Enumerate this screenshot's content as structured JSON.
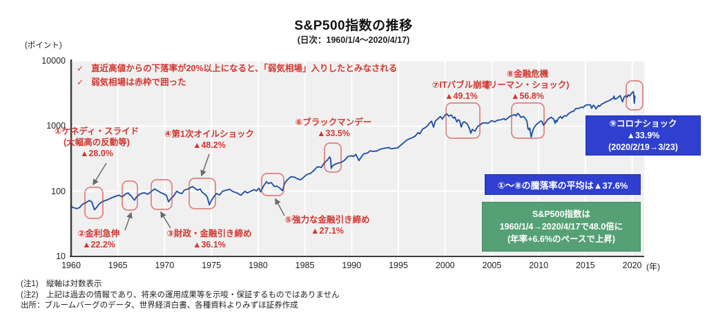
{
  "header": {
    "title": "S&P500指数の推移",
    "subtitle": "(日次：1960/1/4～2020/4/17)"
  },
  "top_notes": {
    "check_icon": "✓",
    "line1": "直近高値からの下落率が20%以上になると、「弱気相場」入りしたとみなされる",
    "line2": "弱気相場は赤枠で囲った"
  },
  "axes": {
    "y_unit": "(ポイント)",
    "x_unit": "(年)"
  },
  "events": [
    {
      "label": "①ケネディ・スライド",
      "sub": "(大幅高の反動等)",
      "value": "▲28.0%"
    },
    {
      "label": "②金利急伸",
      "value": "▲22.2%"
    },
    {
      "label": "③財政・金融引き締め",
      "value": "▲36.1%"
    },
    {
      "label": "④第1次オイルショック",
      "value": "▲48.2%"
    },
    {
      "label": "⑤強力な金融引き締め",
      "value": "▲27.1%"
    },
    {
      "label": "⑥ブラックマンデー",
      "value": "▲33.5%"
    },
    {
      "label": "⑦ITバブル崩壊",
      "value": "▲49.1%"
    },
    {
      "label": "⑧金融危機",
      "sub": "(リーマン・ショック)",
      "value": "▲56.8%"
    },
    {
      "label": "⑨コロナショック",
      "value": "▲33.9%",
      "sub": "(2020/2/19→3/23)"
    }
  ],
  "summary": {
    "avg_drop": "①～⑧の騰落率の平均は▲37.6%",
    "growth_line1": "S&P500指数は",
    "growth_line2": "1960/1/4→2020/4/17で48.0倍に",
    "growth_line3": "(年率+6.6%のペースで上昇)"
  },
  "footnotes": {
    "note1": "(注1)　縦軸は対数表示",
    "note2": "(注2)　上記は過去の情報であり、将来の運用成果等を示唆・保証するものではありません",
    "source": "出所：ブルームバーグのデータ、世界経済白書、各種資料よりみずほ証券作成"
  },
  "colors": {
    "line": "#2152a3",
    "red": "#d23630",
    "bear_box_stroke": "rgba(210,54,48,0.6)",
    "blue_box": "#2f3fd0",
    "green_box": "#55a075",
    "plot_bg": "#f0f0f0",
    "grid": "#ffffff",
    "spine": "#3c3c3c",
    "arrow": "#6b6b6b"
  },
  "chart_data": {
    "type": "line",
    "title": "S&P500指数の推移",
    "subtitle": "(日次：1960/1/4～2020/4/17)",
    "ylabel": "(ポイント)",
    "xlabel": "(年)",
    "y_scale": "log",
    "ylim": [
      10,
      10000
    ],
    "y_tick_values": [
      10000,
      1000,
      100,
      10
    ],
    "y_tick_labels": [
      "10000",
      "1000",
      "100",
      "10"
    ],
    "x_tick_values": [
      1960,
      1965,
      1970,
      1975,
      1980,
      1985,
      1990,
      1995,
      2000,
      2005,
      2010,
      2015,
      2020
    ],
    "x_tick_labels": [
      "1960",
      "1965",
      "1970",
      "1975",
      "1980",
      "1985",
      "1990",
      "1995",
      "2000",
      "2005",
      "2010",
      "2015",
      "2020"
    ],
    "legend": "none",
    "grid": "on",
    "series": [
      {
        "name": "S&P500",
        "points": [
          [
            1960.0,
            59
          ],
          [
            1960.25,
            56
          ],
          [
            1960.6,
            54
          ],
          [
            1960.9,
            56
          ],
          [
            1961.2,
            63
          ],
          [
            1961.6,
            67
          ],
          [
            1961.95,
            72
          ],
          [
            1962.2,
            69
          ],
          [
            1962.35,
            60
          ],
          [
            1962.5,
            52
          ],
          [
            1962.75,
            57
          ],
          [
            1963.0,
            64
          ],
          [
            1963.4,
            70
          ],
          [
            1963.9,
            74
          ],
          [
            1964.3,
            79
          ],
          [
            1964.8,
            84
          ],
          [
            1965.1,
            87
          ],
          [
            1965.45,
            82
          ],
          [
            1965.9,
            92
          ],
          [
            1966.1,
            94
          ],
          [
            1966.35,
            87
          ],
          [
            1966.6,
            78
          ],
          [
            1966.78,
            73
          ],
          [
            1967.0,
            82
          ],
          [
            1967.4,
            91
          ],
          [
            1967.8,
            95
          ],
          [
            1968.2,
            90
          ],
          [
            1968.6,
            100
          ],
          [
            1968.92,
            108
          ],
          [
            1969.3,
            101
          ],
          [
            1969.6,
            95
          ],
          [
            1969.95,
            90
          ],
          [
            1970.2,
            86
          ],
          [
            1970.42,
            69
          ],
          [
            1970.7,
            78
          ],
          [
            1970.95,
            84
          ],
          [
            1971.3,
            100
          ],
          [
            1971.6,
            94
          ],
          [
            1971.85,
            92
          ],
          [
            1972.1,
            104
          ],
          [
            1972.5,
            108
          ],
          [
            1972.96,
            118
          ],
          [
            1973.2,
            112
          ],
          [
            1973.5,
            104
          ],
          [
            1973.8,
            108
          ],
          [
            1974.0,
            97
          ],
          [
            1974.3,
            90
          ],
          [
            1974.55,
            82
          ],
          [
            1974.78,
            62
          ],
          [
            1975.0,
            72
          ],
          [
            1975.3,
            84
          ],
          [
            1975.55,
            92
          ],
          [
            1975.9,
            88
          ],
          [
            1976.2,
            100
          ],
          [
            1976.6,
            104
          ],
          [
            1976.95,
            107
          ],
          [
            1977.3,
            99
          ],
          [
            1977.7,
            95
          ],
          [
            1978.15,
            87
          ],
          [
            1978.6,
            100
          ],
          [
            1978.85,
            94
          ],
          [
            1979.2,
            100
          ],
          [
            1979.6,
            106
          ],
          [
            1979.8,
            101
          ],
          [
            1980.1,
            111
          ],
          [
            1980.27,
            98
          ],
          [
            1980.6,
            122
          ],
          [
            1980.9,
            140
          ],
          [
            1981.1,
            131
          ],
          [
            1981.4,
            136
          ],
          [
            1981.75,
            118
          ],
          [
            1982.0,
            120
          ],
          [
            1982.3,
            112
          ],
          [
            1982.6,
            102
          ],
          [
            1982.85,
            135
          ],
          [
            1983.1,
            148
          ],
          [
            1983.5,
            167
          ],
          [
            1983.9,
            164
          ],
          [
            1984.2,
            155
          ],
          [
            1984.55,
            150
          ],
          [
            1984.9,
            165
          ],
          [
            1985.2,
            180
          ],
          [
            1985.6,
            188
          ],
          [
            1985.95,
            207
          ],
          [
            1986.3,
            235
          ],
          [
            1986.55,
            236
          ],
          [
            1986.75,
            231
          ],
          [
            1987.1,
            275
          ],
          [
            1987.4,
            300
          ],
          [
            1987.65,
            336
          ],
          [
            1987.75,
            315
          ],
          [
            1987.82,
            225
          ],
          [
            1987.95,
            245
          ],
          [
            1988.2,
            258
          ],
          [
            1988.55,
            270
          ],
          [
            1988.9,
            278
          ],
          [
            1989.2,
            295
          ],
          [
            1989.6,
            340
          ],
          [
            1989.95,
            350
          ],
          [
            1990.2,
            340
          ],
          [
            1990.45,
            368
          ],
          [
            1990.78,
            295
          ],
          [
            1991.0,
            330
          ],
          [
            1991.3,
            375
          ],
          [
            1991.7,
            385
          ],
          [
            1991.98,
            417
          ],
          [
            1992.3,
            410
          ],
          [
            1992.7,
            415
          ],
          [
            1992.97,
            435
          ],
          [
            1993.3,
            450
          ],
          [
            1993.7,
            460
          ],
          [
            1993.97,
            467
          ],
          [
            1994.2,
            447
          ],
          [
            1994.55,
            455
          ],
          [
            1994.9,
            460
          ],
          [
            1995.2,
            500
          ],
          [
            1995.6,
            560
          ],
          [
            1995.95,
            616
          ],
          [
            1996.3,
            645
          ],
          [
            1996.55,
            670
          ],
          [
            1996.8,
            700
          ],
          [
            1997.1,
            790
          ],
          [
            1997.3,
            760
          ],
          [
            1997.6,
            900
          ],
          [
            1997.85,
            940
          ],
          [
            1998.1,
            1000
          ],
          [
            1998.3,
            1100
          ],
          [
            1998.55,
            1186
          ],
          [
            1998.76,
            960
          ],
          [
            1998.95,
            1190
          ],
          [
            1999.2,
            1280
          ],
          [
            1999.5,
            1400
          ],
          [
            1999.7,
            1280
          ],
          [
            1999.97,
            1469
          ],
          [
            2000.2,
            1527
          ],
          [
            2000.4,
            1420
          ],
          [
            2000.65,
            1480
          ],
          [
            2000.9,
            1320
          ],
          [
            2001.05,
            1370
          ],
          [
            2001.25,
            1160
          ],
          [
            2001.4,
            1250
          ],
          [
            2001.55,
            1210
          ],
          [
            2001.72,
            966
          ],
          [
            2001.9,
            1140
          ],
          [
            2002.05,
            1160
          ],
          [
            2002.3,
            1100
          ],
          [
            2002.5,
            990
          ],
          [
            2002.75,
            777
          ],
          [
            2002.9,
            890
          ],
          [
            2003.05,
            855
          ],
          [
            2003.2,
            840
          ],
          [
            2003.5,
            990
          ],
          [
            2003.8,
            1050
          ],
          [
            2003.97,
            1112
          ],
          [
            2004.3,
            1120
          ],
          [
            2004.6,
            1100
          ],
          [
            2004.97,
            1212
          ],
          [
            2005.3,
            1160
          ],
          [
            2005.6,
            1230
          ],
          [
            2005.97,
            1248
          ],
          [
            2006.3,
            1300
          ],
          [
            2006.45,
            1240
          ],
          [
            2006.8,
            1360
          ],
          [
            2006.97,
            1418
          ],
          [
            2007.2,
            1450
          ],
          [
            2007.45,
            1500
          ],
          [
            2007.6,
            1430
          ],
          [
            2007.78,
            1565
          ],
          [
            2007.95,
            1470
          ],
          [
            2008.1,
            1360
          ],
          [
            2008.4,
            1400
          ],
          [
            2008.65,
            1250
          ],
          [
            2008.75,
            1180
          ],
          [
            2008.87,
            900
          ],
          [
            2008.95,
            880
          ],
          [
            2009.05,
            930
          ],
          [
            2009.2,
            677
          ],
          [
            2009.4,
            870
          ],
          [
            2009.6,
            990
          ],
          [
            2009.8,
            1070
          ],
          [
            2009.97,
            1115
          ],
          [
            2010.2,
            1190
          ],
          [
            2010.35,
            1180
          ],
          [
            2010.52,
            1030
          ],
          [
            2010.7,
            1100
          ],
          [
            2010.97,
            1258
          ],
          [
            2011.15,
            1320
          ],
          [
            2011.35,
            1360
          ],
          [
            2011.6,
            1280
          ],
          [
            2011.76,
            1100
          ],
          [
            2011.85,
            1220
          ],
          [
            2011.95,
            1160
          ],
          [
            2012.1,
            1310
          ],
          [
            2012.35,
            1400
          ],
          [
            2012.5,
            1310
          ],
          [
            2012.75,
            1440
          ],
          [
            2012.97,
            1426
          ],
          [
            2013.2,
            1550
          ],
          [
            2013.5,
            1650
          ],
          [
            2013.75,
            1690
          ],
          [
            2013.97,
            1848
          ],
          [
            2014.3,
            1870
          ],
          [
            2014.6,
            1960
          ],
          [
            2014.75,
            1910
          ],
          [
            2014.97,
            2060
          ],
          [
            2015.15,
            2100
          ],
          [
            2015.38,
            2130
          ],
          [
            2015.55,
            2100
          ],
          [
            2015.67,
            1870
          ],
          [
            2015.85,
            2080
          ],
          [
            2016.0,
            2000
          ],
          [
            2016.13,
            1830
          ],
          [
            2016.4,
            2070
          ],
          [
            2016.5,
            2000
          ],
          [
            2016.75,
            2170
          ],
          [
            2016.97,
            2239
          ],
          [
            2017.2,
            2360
          ],
          [
            2017.5,
            2430
          ],
          [
            2017.75,
            2560
          ],
          [
            2017.97,
            2674
          ],
          [
            2018.07,
            2870
          ],
          [
            2018.13,
            2580
          ],
          [
            2018.35,
            2640
          ],
          [
            2018.55,
            2780
          ],
          [
            2018.72,
            2930
          ],
          [
            2018.85,
            2630
          ],
          [
            2018.97,
            2351
          ],
          [
            2019.15,
            2800
          ],
          [
            2019.35,
            2920
          ],
          [
            2019.45,
            2750
          ],
          [
            2019.6,
            3020
          ],
          [
            2019.75,
            2890
          ],
          [
            2019.97,
            3230
          ],
          [
            2020.05,
            3290
          ],
          [
            2020.13,
            3386
          ],
          [
            2020.18,
            2950
          ],
          [
            2020.23,
            2237
          ],
          [
            2020.26,
            2450
          ],
          [
            2020.3,
            2875
          ]
        ]
      }
    ]
  }
}
